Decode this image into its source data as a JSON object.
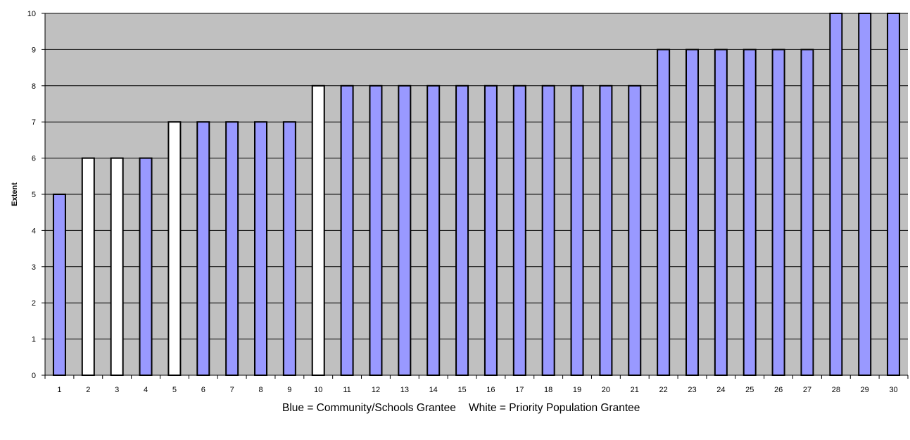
{
  "chart_data": {
    "type": "bar",
    "ylabel": "Extent",
    "xlabel": "",
    "ylim": [
      0,
      10
    ],
    "yticks": [
      "0",
      "1",
      "2",
      "3",
      "4",
      "5",
      "6",
      "7",
      "8",
      "9",
      "10"
    ],
    "grid": true,
    "categories": [
      "1",
      "2",
      "3",
      "4",
      "5",
      "6",
      "7",
      "8",
      "9",
      "10",
      "11",
      "12",
      "13",
      "14",
      "15",
      "16",
      "17",
      "18",
      "19",
      "20",
      "21",
      "22",
      "23",
      "24",
      "25",
      "26",
      "27",
      "28",
      "29",
      "30"
    ],
    "values": [
      5,
      6,
      6,
      6,
      7,
      7,
      7,
      7,
      7,
      8,
      8,
      8,
      8,
      8,
      8,
      8,
      8,
      8,
      8,
      8,
      8,
      9,
      9,
      9,
      9,
      9,
      9,
      10,
      10,
      10
    ],
    "bar_groups": [
      "Community/Schools",
      "Priority Population",
      "Priority Population",
      "Community/Schools",
      "Priority Population",
      "Community/Schools",
      "Community/Schools",
      "Community/Schools",
      "Community/Schools",
      "Priority Population",
      "Community/Schools",
      "Community/Schools",
      "Community/Schools",
      "Community/Schools",
      "Community/Schools",
      "Community/Schools",
      "Community/Schools",
      "Community/Schools",
      "Community/Schools",
      "Community/Schools",
      "Community/Schools",
      "Community/Schools",
      "Community/Schools",
      "Community/Schools",
      "Community/Schools",
      "Community/Schools",
      "Community/Schools",
      "Community/Schools",
      "Community/Schools",
      "Community/Schools"
    ],
    "colors": {
      "Community/Schools": "#9999ff",
      "Priority Population": "#ffffff",
      "plot_background": "#c0c0c0"
    },
    "legend_text": {
      "blue": "Blue = Community/Schools Grantee",
      "white": "White = Priority Population Grantee"
    }
  }
}
